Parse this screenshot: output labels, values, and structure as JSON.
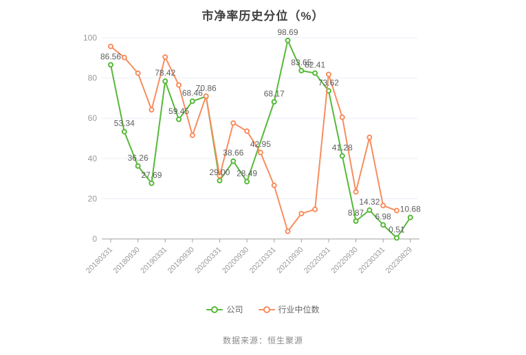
{
  "title": "市净率历史分位（%）",
  "source_text": "数据来源：恒生聚源",
  "colors": {
    "company_green": "#55b837",
    "industry_orange": "#f88c5d",
    "grid_line": "#e8eef7",
    "axis_line": "#a0a0a0",
    "tick_label": "#999999",
    "data_label": "#5e5e5e"
  },
  "legend": {
    "items": [
      {
        "label": "公司",
        "color": "#55b837"
      },
      {
        "label": "行业中位数",
        "color": "#f88c5d"
      }
    ]
  },
  "chart_data": {
    "type": "line",
    "title": "市净率历史分位（%）",
    "x_labels": [
      "20180331",
      "20180930",
      "20190331",
      "20190930",
      "20200331",
      "20200930",
      "20210331",
      "20210930",
      "20220331",
      "20220930",
      "20230331",
      "20230829"
    ],
    "points_per_label": 2,
    "ylim": [
      0,
      100
    ],
    "y_ticks": [
      0,
      20,
      40,
      60,
      80,
      100
    ],
    "grid": true,
    "legend_position": "bottom",
    "series": [
      {
        "name": "公司",
        "color": "#55b837",
        "values": [
          86.56,
          53.34,
          36.26,
          27.69,
          78.42,
          59.45,
          68.46,
          70.86,
          29.0,
          38.66,
          28.49,
          null,
          68.17,
          98.69,
          83.65,
          82.41,
          73.62,
          41.28,
          8.87,
          14.32,
          6.98,
          0.51,
          10.68
        ],
        "labels": [
          "86.56",
          "53.34",
          "36.26",
          "27.69",
          "78.42",
          "59.45",
          "68.46",
          "70.86",
          "29.00",
          "38.66",
          "28.49",
          null,
          "68.17",
          "98.69",
          "83.65",
          "82.41",
          "73.62",
          "41.28",
          "8.87",
          "14.32",
          "6.98",
          "0.51",
          "10.68"
        ]
      },
      {
        "name": "行业中位数",
        "color": "#f88c5d",
        "values": [
          95.7,
          90.2,
          82.4,
          64.2,
          90.4,
          76.5,
          51.5,
          71.0,
          31.4,
          57.6,
          53.6,
          42.95,
          26.6,
          3.8,
          12.6,
          14.7,
          81.8,
          60.5,
          23.4,
          50.5,
          16.6,
          14.1,
          null
        ],
        "labels": [
          null,
          null,
          null,
          null,
          null,
          null,
          null,
          null,
          null,
          null,
          null,
          "42.95",
          null,
          null,
          null,
          null,
          null,
          null,
          null,
          null,
          null,
          null,
          null
        ]
      }
    ]
  }
}
